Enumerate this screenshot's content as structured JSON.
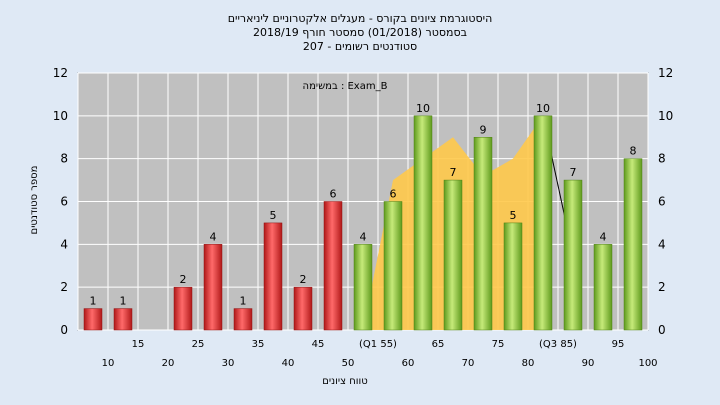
{
  "chart_data": {
    "type": "bar",
    "title_lines": [
      "היסטוגרמת ציונים בקורס - מעגלים אלקטרוניים ליניאריים",
      "בסמסטר  (01/2018)  סמסטר חורף 2018/19",
      "סטודנטים רשומים - 207"
    ],
    "annotation": "במשימה : Exam_B",
    "xlabel": "טווח ציונים",
    "ylabel": "מספר סטודנטים",
    "ylim": [
      0,
      12
    ],
    "yticks": [
      0,
      2,
      4,
      6,
      8,
      10,
      12
    ],
    "grid": true,
    "categories": [
      "10",
      "15",
      "20",
      "25",
      "30",
      "35",
      "40",
      "45",
      "50",
      "(Q1 55)",
      "60",
      "65",
      "70",
      "75",
      "80",
      "(Q3 85)",
      "90",
      "95",
      "100"
    ],
    "values": [
      1,
      1,
      0,
      2,
      4,
      1,
      5,
      2,
      6,
      4,
      6,
      10,
      7,
      9,
      5,
      10,
      7,
      4,
      8
    ],
    "bar_colors": [
      "#e03030",
      "#e03030",
      "#e03030",
      "#e03030",
      "#e03030",
      "#e03030",
      "#e03030",
      "#e03030",
      "#e03030",
      "#8cc63e",
      "#8cc63e",
      "#8cc63e",
      "#8cc63e",
      "#8cc63e",
      "#8cc63e",
      "#8cc63e",
      "#8cc63e",
      "#8cc63e",
      "#8cc63e"
    ],
    "area_series": {
      "color": "#ffc94a",
      "x": [
        "(Q1 55)",
        "60",
        "65",
        "70",
        "75",
        "80",
        "(Q3 85)"
      ],
      "values": [
        0,
        7,
        8,
        9,
        7.2,
        8,
        10
      ]
    },
    "line_series": {
      "color": "#000000",
      "x": [
        "(Q3 85)",
        "90"
      ],
      "values": [
        10,
        3.5
      ]
    },
    "colors": {
      "background": "#dfe9f5",
      "plot_area": "#c0c0c0",
      "grid": "#ffffff"
    }
  }
}
